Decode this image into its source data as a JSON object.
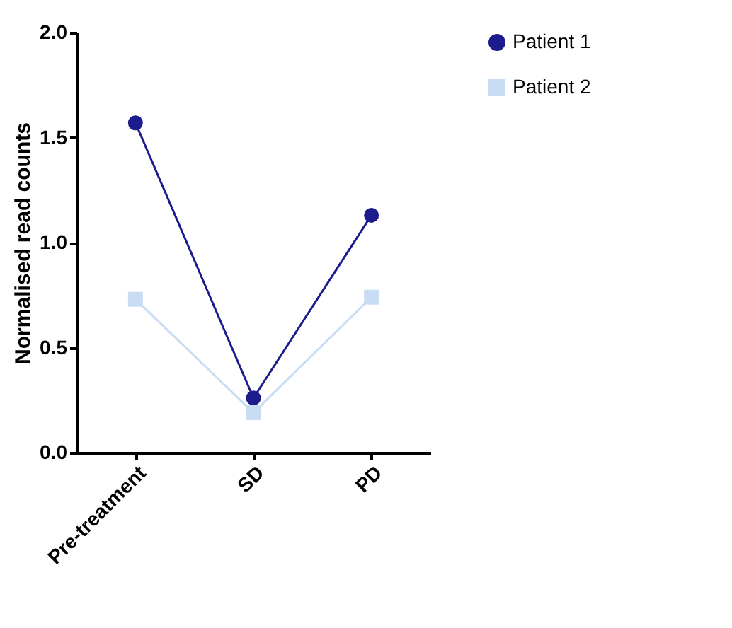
{
  "chart_data": {
    "type": "line",
    "ylabel": "Normalised read counts",
    "categories": [
      "Pre-treatment",
      "SD",
      "PD"
    ],
    "series": [
      {
        "name": "Patient 1",
        "color": "#1c1c8c",
        "marker": "circle",
        "values": [
          1.57,
          0.26,
          1.13
        ]
      },
      {
        "name": "Patient 2",
        "color": "#c8dcf4",
        "marker": "square",
        "values": [
          0.73,
          0.19,
          0.74
        ]
      }
    ],
    "ylim": [
      0,
      2
    ],
    "yticks": [
      {
        "value": 0,
        "label": "0.0"
      },
      {
        "value": 0.5,
        "label": "0.5"
      },
      {
        "value": 1,
        "label": "1.0"
      },
      {
        "value": 1.5,
        "label": "1.5"
      },
      {
        "value": 2,
        "label": "2.0"
      }
    ],
    "grid": false,
    "legend": "top right"
  }
}
